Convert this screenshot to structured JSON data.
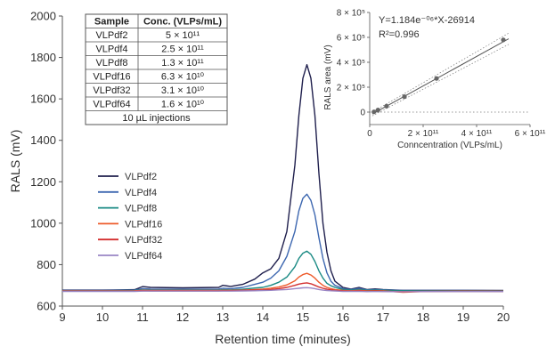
{
  "chart_data": [
    {
      "type": "line",
      "xlabel": "Retention time (minutes)",
      "ylabel": "RALS (mV)",
      "xlim": [
        9,
        20
      ],
      "ylim": [
        600,
        2000
      ],
      "x_ticks": [
        "9",
        "10",
        "11",
        "12",
        "13",
        "14",
        "15",
        "16",
        "17",
        "18",
        "19",
        "20"
      ],
      "y_ticks": [
        "600",
        "800",
        "1000",
        "1200",
        "1400",
        "1600",
        "1800",
        "2000"
      ],
      "grid": false,
      "legend_position": "left-middle",
      "x": [
        9.0,
        10.0,
        10.8,
        11.0,
        11.2,
        12.0,
        12.9,
        13.0,
        13.2,
        13.5,
        13.8,
        14.0,
        14.2,
        14.4,
        14.6,
        14.8,
        14.9,
        15.0,
        15.1,
        15.2,
        15.3,
        15.4,
        15.5,
        15.6,
        15.7,
        15.8,
        16.0,
        16.2,
        16.4,
        16.6,
        16.8,
        17.0,
        17.5,
        18.0,
        19.0,
        20.0
      ],
      "series": [
        {
          "name": "VLPdf2",
          "color": "#1f1f4d",
          "values": [
            677,
            677,
            679,
            694,
            690,
            688,
            690,
            700,
            695,
            705,
            730,
            760,
            780,
            830,
            960,
            1280,
            1520,
            1700,
            1765,
            1700,
            1520,
            1240,
            1000,
            860,
            770,
            720,
            690,
            682,
            690,
            680,
            683,
            680,
            676,
            676,
            676,
            675
          ]
        },
        {
          "name": "VLPdf4",
          "color": "#3d67b0",
          "values": [
            675,
            675,
            677,
            684,
            682,
            681,
            682,
            686,
            684,
            690,
            705,
            715,
            735,
            770,
            840,
            960,
            1060,
            1120,
            1140,
            1110,
            1040,
            930,
            830,
            760,
            720,
            700,
            684,
            680,
            685,
            678,
            680,
            678,
            675,
            675,
            675,
            674
          ]
        },
        {
          "name": "VLPdf8",
          "color": "#1a8a84",
          "values": [
            674,
            674,
            675,
            678,
            677,
            677,
            677,
            679,
            678,
            681,
            687,
            690,
            700,
            715,
            740,
            790,
            830,
            855,
            865,
            850,
            815,
            770,
            735,
            710,
            698,
            690,
            680,
            677,
            680,
            676,
            677,
            676,
            674,
            674,
            674,
            673
          ]
        },
        {
          "name": "VLPdf16",
          "color": "#ee5b2b",
          "values": [
            673,
            673,
            674,
            676,
            675,
            675,
            675,
            676,
            676,
            677,
            680,
            682,
            686,
            692,
            702,
            722,
            740,
            752,
            758,
            750,
            735,
            715,
            700,
            690,
            684,
            680,
            675,
            674,
            676,
            673,
            674,
            673,
            666,
            670,
            672,
            671
          ]
        },
        {
          "name": "VLPdf32",
          "color": "#d32f2f",
          "values": [
            672,
            672,
            672,
            674,
            673,
            673,
            673,
            674,
            674,
            675,
            677,
            678,
            680,
            684,
            690,
            700,
            706,
            710,
            712,
            708,
            700,
            692,
            686,
            681,
            678,
            676,
            673,
            672,
            673,
            671,
            672,
            671,
            670,
            671,
            671,
            671
          ]
        },
        {
          "name": "VLPdf64",
          "color": "#9a86c4",
          "values": [
            671,
            671,
            671,
            672,
            672,
            672,
            672,
            672,
            672,
            673,
            674,
            675,
            676,
            678,
            680,
            684,
            686,
            688,
            689,
            687,
            684,
            680,
            677,
            675,
            674,
            673,
            671,
            671,
            671,
            670,
            670,
            670,
            669,
            670,
            670,
            670
          ]
        }
      ]
    },
    {
      "type": "scatter",
      "xlabel": "Conncentration (VLPs/mL)",
      "ylabel": "RALS area (mV)",
      "xlim": [
        0,
        600000000000
      ],
      "ylim": [
        -100000,
        800000
      ],
      "x_ticks": [
        "0",
        "2 × 10¹¹",
        "4 × 10¹¹",
        "6 × 10¹¹"
      ],
      "y_ticks": [
        "0",
        "2 × 10⁵",
        "4 × 10⁵",
        "6 × 10⁵",
        "8 × 10⁵"
      ],
      "equation": "Y=1.184e⁻⁰⁶*X-26914",
      "r_squared": "R²=0.996",
      "points": {
        "x": [
          16000000000,
          31000000000,
          63000000000,
          130000000000,
          250000000000,
          500000000000
        ],
        "y": [
          2000,
          17000,
          48000,
          124000,
          270000,
          580000
        ]
      },
      "fit": {
        "slope": 1.184e-06,
        "intercept": -26914
      }
    }
  ],
  "table": {
    "headers": [
      "Sample",
      "Conc. (VLPs/mL)"
    ],
    "rows": [
      [
        "VLPdf2",
        "5 × 10¹¹"
      ],
      [
        "VLPdf4",
        "2.5 × 10¹¹"
      ],
      [
        "VLPdf8",
        "1.3 × 10¹¹"
      ],
      [
        "VLPdf16",
        "6.3 × 10¹⁰"
      ],
      [
        "VLPdf32",
        "3.1 × 10¹⁰"
      ],
      [
        "VLPdf64",
        "1.6 × 10¹⁰"
      ]
    ],
    "footer": "10 µL injections"
  }
}
